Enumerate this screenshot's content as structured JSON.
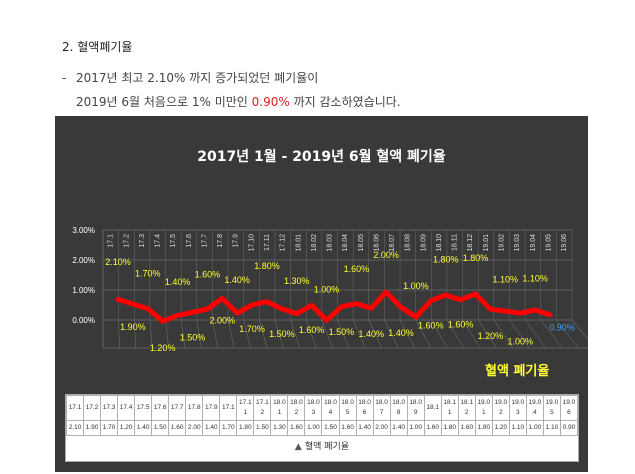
{
  "section_heading": "2. 혈액폐기율",
  "bullet": {
    "dash": "-",
    "line1": "2017년 최고 2.10% 까지 증가되었던 폐기율이",
    "line2_before": "2019년 6월 처음으로 1% 미만인 ",
    "line2_highlight": "0.90%",
    "line2_after": " 까지 감소하였습니다."
  },
  "colors": {
    "series": "#ff0000",
    "labels": "#ffff33",
    "last_label": "#3aa0ff",
    "panel": "#393939",
    "grid": "#6a6a6a",
    "highlight_text": "#e02020"
  },
  "chart_data": {
    "type": "line",
    "title": "2017년 1월 - 2019년 6월 혈액 폐기율",
    "legend_label": "혈액 폐기율",
    "table_legend": "혈액 폐기율",
    "y_ticks": [
      "3.00%",
      "2.00%",
      "1.00%",
      "0.00%"
    ],
    "ylim": [
      0,
      3
    ],
    "categories": [
      "17.1",
      "17.2",
      "17.3",
      "17.4",
      "17.5",
      "17.6",
      "17.7",
      "17.8",
      "17.9",
      "17.10",
      "17.11",
      "17.12",
      "18.01",
      "18.02",
      "18.03",
      "18.04",
      "18.05",
      "18.06",
      "18.07",
      "18.08",
      "18.09",
      "18.10",
      "18.11",
      "18.12",
      "19.01",
      "19.02",
      "19.03",
      "19.04",
      "19.05",
      "19.06"
    ],
    "table_headers": [
      [
        "17.1"
      ],
      [
        "17.2"
      ],
      [
        "17.3"
      ],
      [
        "17.4"
      ],
      [
        "17.5"
      ],
      [
        "17.6"
      ],
      [
        "17.7"
      ],
      [
        "17.8"
      ],
      [
        "17.9"
      ],
      [
        "17.1"
      ],
      [
        "17.1",
        "1"
      ],
      [
        "17.1",
        "2"
      ],
      [
        "18.0",
        "1"
      ],
      [
        "18.0",
        "2"
      ],
      [
        "18.0",
        "3"
      ],
      [
        "18.0",
        "4"
      ],
      [
        "18.0",
        "5"
      ],
      [
        "18.0",
        "6"
      ],
      [
        "18.0",
        "7"
      ],
      [
        "18.0",
        "8"
      ],
      [
        "18.0",
        "9"
      ],
      [
        "18.1"
      ],
      [
        "18.1",
        "1"
      ],
      [
        "18.1",
        "2"
      ],
      [
        "19.0",
        "1"
      ],
      [
        "19.0",
        "2"
      ],
      [
        "19.0",
        "3"
      ],
      [
        "19.0",
        "4"
      ],
      [
        "19.0",
        "5"
      ],
      [
        "19.0",
        "6"
      ]
    ],
    "values": [
      2.1,
      1.9,
      1.7,
      1.2,
      1.4,
      1.5,
      1.6,
      2.0,
      1.4,
      1.7,
      1.8,
      1.5,
      1.3,
      1.6,
      1.0,
      1.5,
      1.6,
      1.4,
      2.0,
      1.4,
      1.0,
      1.6,
      1.8,
      1.6,
      1.8,
      1.2,
      1.1,
      1.0,
      1.1,
      0.9
    ],
    "value_labels": [
      "2.10",
      "1.90",
      "1.70",
      "1.20",
      "1.40",
      "1.50",
      "1.60",
      "2.00",
      "1.40",
      "1.70",
      "1.80",
      "1.50",
      "1.30",
      "1.60",
      "1.00",
      "1.50",
      "1.60",
      "1.40",
      "2.00",
      "1.40",
      "1.00",
      "1.60",
      "1.80",
      "1.60",
      "1.80",
      "1.20",
      "1.10",
      "1.00",
      "1.10",
      "0.90"
    ],
    "point_labels": [
      "2.10%",
      "1.90%",
      "1.70%",
      "1.20%",
      "1.40%",
      "1.50%",
      "1.60%",
      "2.00%",
      "1.40%",
      "1.70%",
      "1.80%",
      "1.50%",
      "1.30%",
      "1.60%",
      "1.00%",
      "1.50%",
      "1.60%",
      "1.40%",
      "2.00%",
      "1.40%",
      "1.00%",
      "1.60%",
      "1.80%",
      "1.60%",
      "1.80%",
      "1.20%",
      "1.10%",
      "1.00%",
      "1.10%",
      "0.90%"
    ]
  }
}
